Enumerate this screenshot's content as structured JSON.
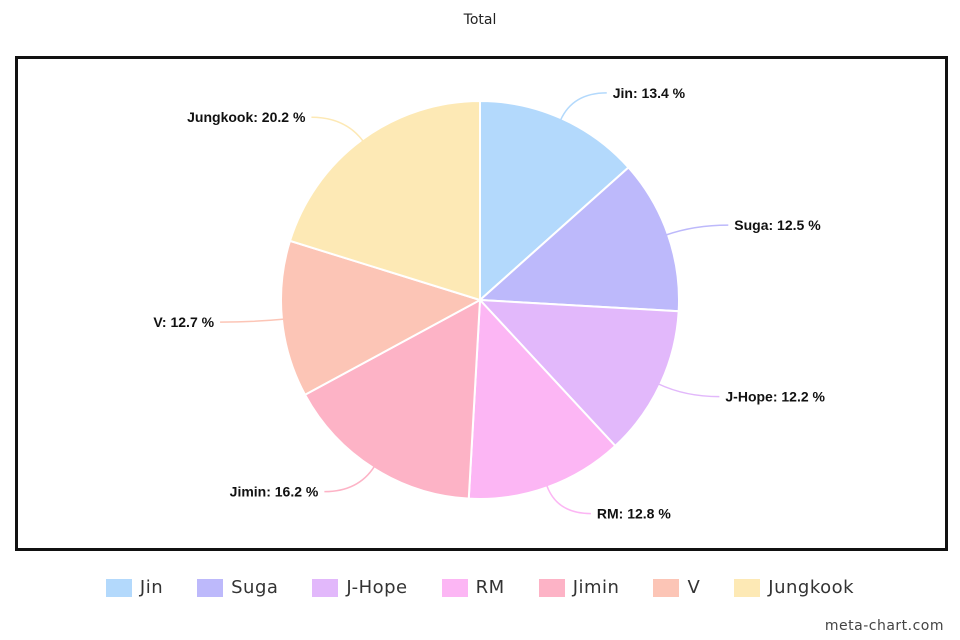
{
  "chart_data": {
    "type": "pie",
    "title": "Total",
    "slices": [
      {
        "label": "Jin",
        "value": 13.4,
        "display": "Jin: 13.4 %",
        "color": "#b3d9fc"
      },
      {
        "label": "Suga",
        "value": 12.5,
        "display": "Suga: 12.5 %",
        "color": "#bdb9fb"
      },
      {
        "label": "J-Hope",
        "value": 12.2,
        "display": "J-Hope: 12.2 %",
        "color": "#e2b8fb"
      },
      {
        "label": "RM",
        "value": 12.8,
        "display": "RM: 12.8 %",
        "color": "#fcb6f4"
      },
      {
        "label": "Jimin",
        "value": 16.2,
        "display": "Jimin: 16.2 %",
        "color": "#fdb3c6"
      },
      {
        "label": "V",
        "value": 12.7,
        "display": "V: 12.7 %",
        "color": "#fcc5b6"
      },
      {
        "label": "Jungkook",
        "value": 20.2,
        "display": "Jungkook: 20.2 %",
        "color": "#fde9b5"
      }
    ],
    "legend_position": "bottom"
  },
  "watermark": "meta-chart.com"
}
